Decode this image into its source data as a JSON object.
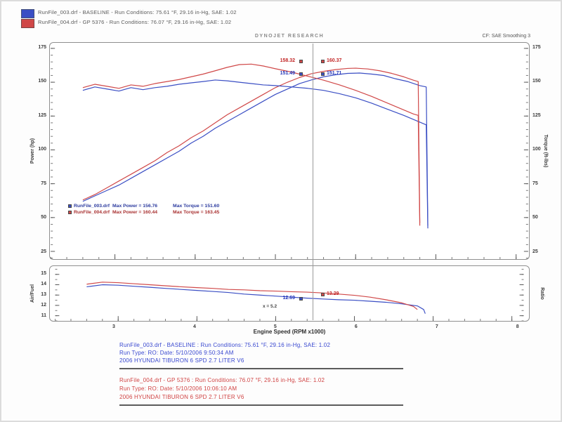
{
  "header": {
    "runs": [
      {
        "title": "RunFile_003.drf - BASELINE  -  Run Conditions: 75.61 °F, 29.16 in-Hg, SAE: 1.02"
      },
      {
        "title": "RunFile_004.drf - GP 5376  -  Run Conditions: 76.07 °F, 29.16 in-Hg, SAE: 1.02"
      }
    ],
    "watermark": "DYNOJET RESEARCH",
    "correction": "CF: SAE   Smoothing 3"
  },
  "axes": {
    "power": "Power (hp)",
    "torque": "Torque (ft-lbs)",
    "airfuel": "Air/Fuel",
    "ratio": "Ratio",
    "xtitle": "Engine Speed (RPM x1000)"
  },
  "legend": {
    "rows": [
      {
        "file": "RunFile_003.drf",
        "max_power": "Max Power = 156.76",
        "max_torque": "Max Torque = 151.60"
      },
      {
        "file": "RunFile_004.drf",
        "max_power": "Max Power = 160.44",
        "max_torque": "Max Torque = 163.45"
      }
    ]
  },
  "cursor": {
    "rpm_k": 5.46,
    "top": {
      "red_left": "158.32",
      "red_right": "160.37",
      "blue_left": "151.49",
      "blue_right": "151.71"
    },
    "afr": {
      "blue": "12.69",
      "red": "13.29",
      "note": "x = 5.2"
    }
  },
  "colors": {
    "blue": "#3a4ec4",
    "red": "#d04848",
    "footer_blue": "#3948d0",
    "footer_red": "#d04343"
  },
  "chart_data": [
    {
      "type": "line",
      "title": "Power and Torque vs Engine Speed",
      "xlabel": "Engine Speed (RPM x1000)",
      "ylabel_left": "Power (hp)",
      "ylabel_right": "Torque (ft-lbs)",
      "xlim": [
        2.2,
        8.15
      ],
      "ylim_display": [
        19.3,
        179.1
      ],
      "yticks": [
        25,
        50,
        75,
        100,
        125,
        150,
        175
      ],
      "yminor": 5,
      "xticks": [
        3,
        4,
        5,
        6,
        7,
        8
      ],
      "xminor": 0.2,
      "legend_position": "lower-left",
      "grid": false,
      "series": [
        {
          "name": "baseline-power-hp",
          "color": "#3a4ec4",
          "x": [
            2.6,
            2.75,
            2.9,
            3.05,
            3.2,
            3.35,
            3.5,
            3.65,
            3.8,
            3.95,
            4.1,
            4.25,
            4.4,
            4.55,
            4.7,
            4.85,
            5.0,
            5.15,
            5.3,
            5.45,
            5.6,
            5.75,
            5.9,
            6.05,
            6.2,
            6.35,
            6.5,
            6.65,
            6.8,
            6.88,
            6.9
          ],
          "y": [
            62,
            66,
            70,
            74,
            79,
            84,
            89,
            94,
            99,
            105,
            110,
            116,
            121,
            126,
            131,
            136,
            141,
            145,
            149,
            151.7,
            154,
            155.5,
            156.5,
            156.8,
            156,
            155,
            152.5,
            150.5,
            147.5,
            146.5,
            44
          ]
        },
        {
          "name": "gp5376-power-hp",
          "color": "#d04848",
          "x": [
            2.6,
            2.75,
            2.9,
            3.05,
            3.2,
            3.35,
            3.5,
            3.65,
            3.8,
            3.95,
            4.1,
            4.25,
            4.4,
            4.55,
            4.7,
            4.85,
            5.0,
            5.15,
            5.3,
            5.45,
            5.6,
            5.75,
            5.9,
            6.0,
            6.15,
            6.3,
            6.45,
            6.6,
            6.72,
            6.78,
            6.8
          ],
          "y": [
            63,
            67,
            72,
            77,
            82,
            87,
            92,
            98,
            103,
            109,
            114,
            120,
            126,
            131,
            136,
            141,
            146,
            150,
            153.5,
            156.3,
            158,
            159.3,
            160.2,
            160.4,
            159.8,
            158.5,
            156.5,
            154,
            151.5,
            150.5,
            46
          ]
        },
        {
          "name": "baseline-torque-ftlb",
          "color": "#3a4ec4",
          "x": [
            2.6,
            2.75,
            2.9,
            3.05,
            3.2,
            3.35,
            3.5,
            3.65,
            3.8,
            3.95,
            4.1,
            4.25,
            4.4,
            4.55,
            4.7,
            4.85,
            5.0,
            5.2,
            5.4,
            5.6,
            5.8,
            6.0,
            6.2,
            6.4,
            6.6,
            6.8,
            6.88,
            6.9
          ],
          "y": [
            144,
            146.5,
            145,
            143.5,
            146,
            144.5,
            146,
            147,
            148.5,
            149.5,
            150.5,
            151.6,
            151,
            150,
            149,
            148,
            147.5,
            146.5,
            145.5,
            144,
            141.5,
            138.5,
            134.5,
            130,
            125.5,
            120.5,
            118.5,
            42
          ]
        },
        {
          "name": "gp5376-torque-ftlb",
          "color": "#d04848",
          "x": [
            2.6,
            2.75,
            2.9,
            3.05,
            3.2,
            3.35,
            3.5,
            3.65,
            3.8,
            3.95,
            4.1,
            4.25,
            4.4,
            4.55,
            4.7,
            4.85,
            5.0,
            5.2,
            5.4,
            5.6,
            5.8,
            6.0,
            6.2,
            6.4,
            6.6,
            6.72,
            6.78,
            6.8
          ],
          "y": [
            146,
            148.5,
            147,
            145.5,
            148,
            147,
            149,
            150.5,
            152,
            154,
            156,
            158.5,
            161,
            163,
            163.4,
            162,
            160,
            157.5,
            154.5,
            151.5,
            148,
            144,
            139.5,
            134.5,
            129.5,
            126.5,
            125.5,
            44
          ]
        }
      ]
    },
    {
      "type": "line",
      "title": "Air/Fuel Ratio vs Engine Speed",
      "xlabel": "Engine Speed (RPM x1000)",
      "ylabel_left": "Air/Fuel",
      "xlim": [
        2.2,
        8.15
      ],
      "ylim_display": [
        10.5,
        15.8
      ],
      "yticks": [
        11,
        12,
        13,
        14,
        15
      ],
      "yminor": 0.5,
      "xticks": [
        3,
        4,
        5,
        6,
        7,
        8
      ],
      "xminor": 0.2,
      "grid": false,
      "series": [
        {
          "name": "baseline-afr",
          "color": "#3a4ec4",
          "x": [
            2.6,
            2.8,
            3.0,
            3.2,
            3.4,
            3.6,
            3.8,
            4.0,
            4.2,
            4.4,
            4.6,
            4.8,
            5.0,
            5.2,
            5.4,
            5.6,
            5.8,
            6.0,
            6.2,
            6.4,
            6.6,
            6.8,
            6.88,
            6.9
          ],
          "y": [
            13.8,
            14.0,
            13.95,
            13.85,
            13.75,
            13.65,
            13.55,
            13.45,
            13.35,
            13.25,
            13.1,
            13.0,
            12.9,
            12.8,
            12.7,
            12.62,
            12.55,
            12.5,
            12.4,
            12.3,
            12.15,
            11.95,
            11.6,
            11.2
          ]
        },
        {
          "name": "gp5376-afr",
          "color": "#d04848",
          "x": [
            2.6,
            2.8,
            3.0,
            3.2,
            3.4,
            3.6,
            3.8,
            4.0,
            4.2,
            4.4,
            4.6,
            4.8,
            5.0,
            5.2,
            5.4,
            5.6,
            5.8,
            6.0,
            6.2,
            6.4,
            6.6,
            6.75,
            6.8
          ],
          "y": [
            14.05,
            14.25,
            14.2,
            14.1,
            14.0,
            13.9,
            13.8,
            13.72,
            13.65,
            13.55,
            13.5,
            13.42,
            13.38,
            13.32,
            13.28,
            13.2,
            13.1,
            12.98,
            12.8,
            12.55,
            12.25,
            11.9,
            11.6
          ]
        }
      ]
    }
  ],
  "footer": {
    "blocks": [
      {
        "color": "#3948d0",
        "lines": [
          "RunFile_003.drf - BASELINE  :  Run Conditions: 75.61 °F, 29.16 in-Hg, SAE: 1.02",
          "Run Type: RO:  Date: 5/10/2006 9:50:34 AM",
          "2006 HYUNDAI TIBURON 6 SPD 2.7 LITER V6"
        ]
      },
      {
        "color": "#d04343",
        "lines": [
          "RunFile_004.drf - GP 5376  :  Run Conditions: 76.07 °F, 29.16 in-Hg, SAE: 1.02",
          "Run Type: RO:  Date: 5/10/2006 10:06:10 AM",
          "2006 HYUNDAI TIBURON 6 SPD 2.7 LITER V6"
        ]
      }
    ]
  }
}
